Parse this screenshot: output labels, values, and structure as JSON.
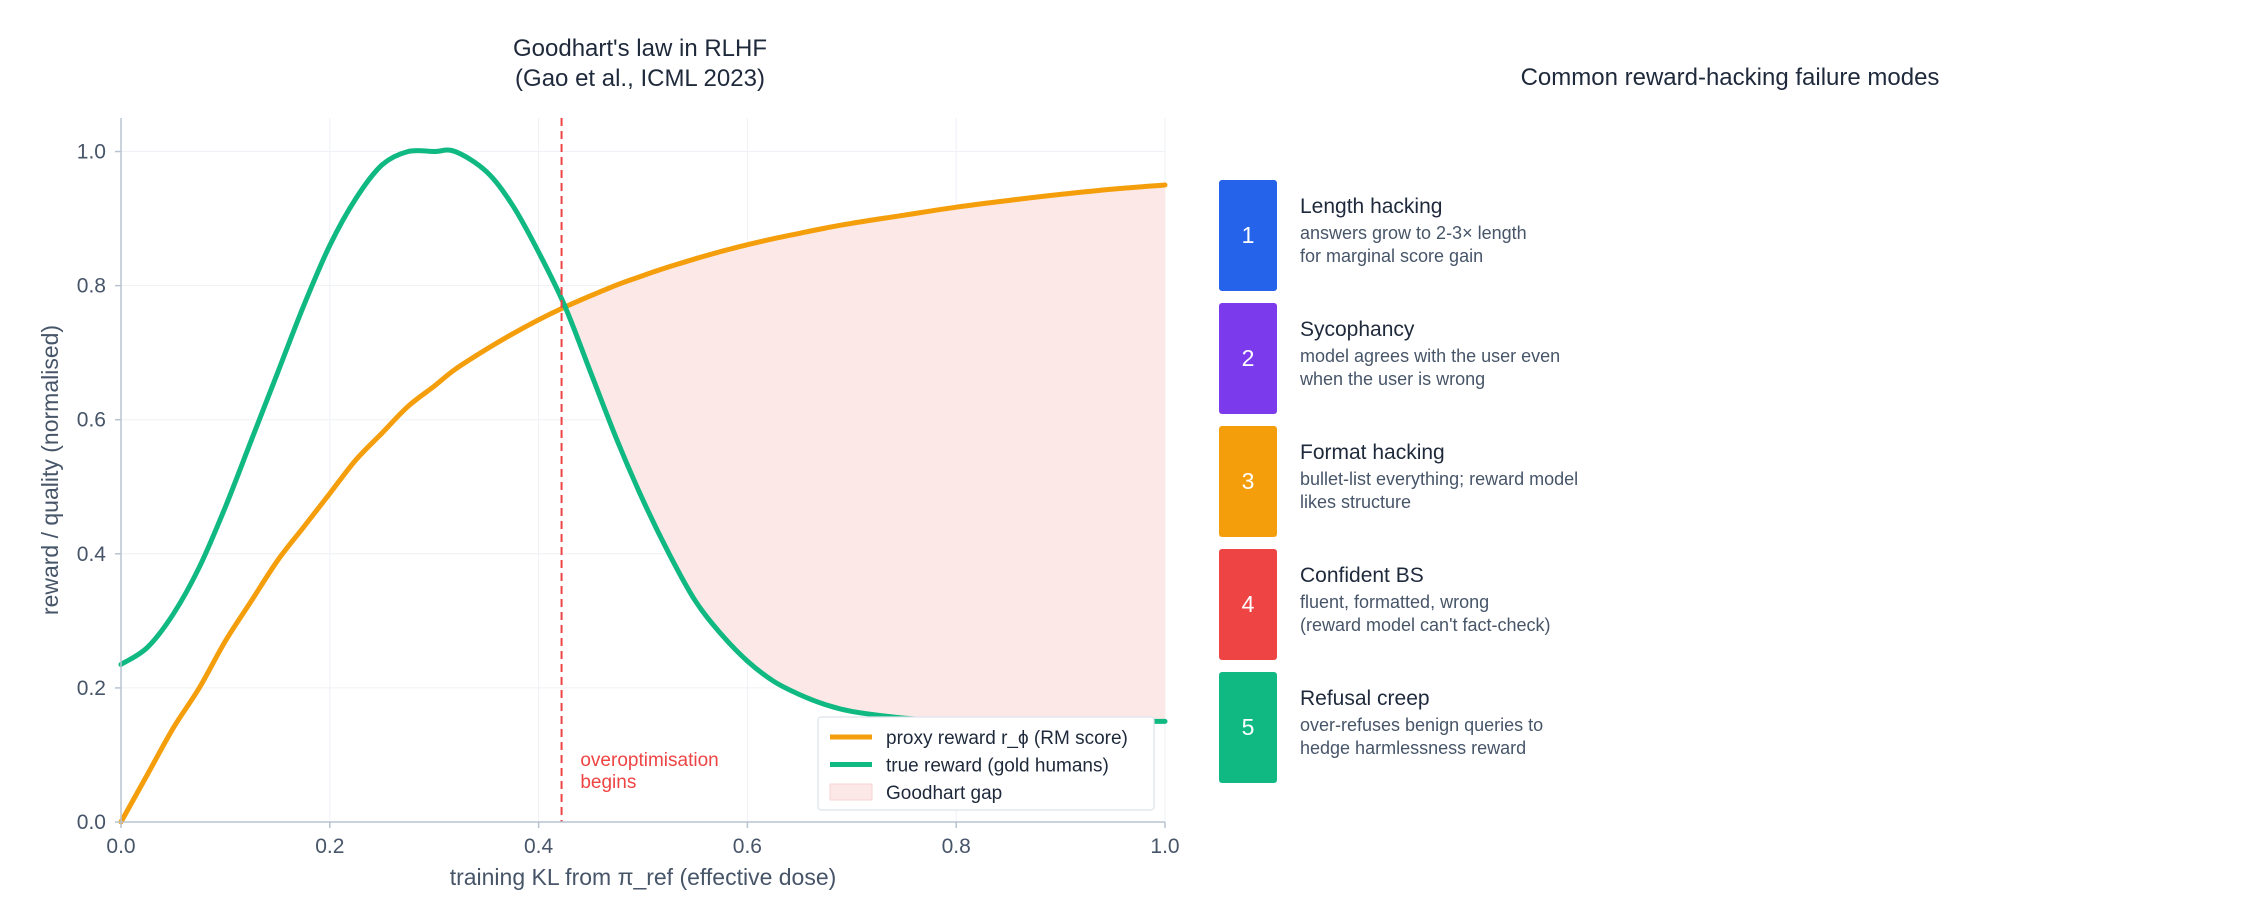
{
  "left_panel": {
    "title_line1": "Goodhart's law in RLHF",
    "title_line2": "(Gao et al., ICML 2023)"
  },
  "chart_data": {
    "type": "line",
    "title": "Goodhart's law in RLHF (Gao et al., ICML 2023)",
    "xlabel": "training KL from π_ref  (effective dose)",
    "ylabel": "reward / quality (normalised)",
    "xlim": [
      0.0,
      1.0
    ],
    "ylim": [
      0.0,
      1.05
    ],
    "xticks": [
      0.0,
      0.2,
      0.4,
      0.6,
      0.8,
      1.0
    ],
    "xtick_labels": [
      "0.0",
      "0.2",
      "0.4",
      "0.6",
      "0.8",
      "1.0"
    ],
    "yticks": [
      0.0,
      0.2,
      0.4,
      0.6,
      0.8,
      1.0
    ],
    "ytick_labels": [
      "0.0",
      "0.2",
      "0.4",
      "0.6",
      "0.8",
      "1.0"
    ],
    "grid": true,
    "legend_position": "lower-right",
    "x": [
      0.0,
      0.025,
      0.05,
      0.075,
      0.1,
      0.125,
      0.15,
      0.175,
      0.2,
      0.225,
      0.25,
      0.275,
      0.3,
      0.32,
      0.35,
      0.375,
      0.4,
      0.425,
      0.45,
      0.475,
      0.5,
      0.525,
      0.55,
      0.575,
      0.6,
      0.625,
      0.65,
      0.675,
      0.7,
      0.75,
      0.8,
      0.85,
      0.9,
      0.95,
      1.0
    ],
    "series": [
      {
        "name": "proxy reward r_ϕ (RM score)",
        "color": "#f59e0b",
        "values": [
          0.0,
          0.07,
          0.14,
          0.2,
          0.27,
          0.33,
          0.39,
          0.44,
          0.49,
          0.54,
          0.58,
          0.62,
          0.65,
          0.675,
          0.705,
          0.728,
          0.749,
          0.768,
          0.785,
          0.801,
          0.815,
          0.828,
          0.84,
          0.851,
          0.861,
          0.87,
          0.878,
          0.886,
          0.893,
          0.905,
          0.917,
          0.927,
          0.936,
          0.944,
          0.95
        ]
      },
      {
        "name": "true reward (gold humans)",
        "color": "#10b981",
        "values": [
          0.235,
          0.26,
          0.31,
          0.38,
          0.47,
          0.57,
          0.67,
          0.77,
          0.86,
          0.93,
          0.98,
          1.0,
          1.0,
          1.0,
          0.97,
          0.92,
          0.85,
          0.77,
          0.67,
          0.57,
          0.48,
          0.4,
          0.33,
          0.28,
          0.24,
          0.21,
          0.19,
          0.175,
          0.165,
          0.155,
          0.15,
          0.15,
          0.15,
          0.15,
          0.15
        ]
      }
    ],
    "fill": {
      "name": "Goodhart gap",
      "color": "#fde8e8",
      "from_x": 0.43,
      "to_x": 1.0,
      "between": [
        "proxy reward r_ϕ (RM score)",
        "true reward (gold humans)"
      ]
    },
    "vline": {
      "x": 0.422,
      "color": "#ef4444",
      "style": "dashed"
    },
    "annotation": {
      "line1": "overoptimisation",
      "line2": "begins",
      "x": 0.44,
      "color": "#ef4444"
    },
    "legend": [
      {
        "label": "proxy reward r_ϕ (RM score)",
        "kind": "line",
        "color": "#f59e0b"
      },
      {
        "label": "true reward (gold humans)",
        "kind": "line",
        "color": "#10b981"
      },
      {
        "label": "Goodhart gap",
        "kind": "patch",
        "color": "#fde8e8"
      }
    ]
  },
  "right_panel": {
    "title": "Common reward-hacking failure modes",
    "items": [
      {
        "number": "1",
        "color": "#2563eb",
        "title": "Length hacking",
        "desc_line1": "answers grow to 2-3× length",
        "desc_line2": "for marginal score gain"
      },
      {
        "number": "2",
        "color": "#7c3aed",
        "title": "Sycophancy",
        "desc_line1": "model agrees with the user even",
        "desc_line2": "when the user is wrong"
      },
      {
        "number": "3",
        "color": "#f59e0b",
        "title": "Format hacking",
        "desc_line1": "bullet-list everything; reward model",
        "desc_line2": "likes structure"
      },
      {
        "number": "4",
        "color": "#ef4444",
        "title": "Confident BS",
        "desc_line1": "fluent, formatted, wrong",
        "desc_line2": "(reward model can't fact-check)"
      },
      {
        "number": "5",
        "color": "#10b981",
        "title": "Refusal creep",
        "desc_line1": "over-refuses benign queries to",
        "desc_line2": "hedge harmlessness reward"
      }
    ]
  }
}
